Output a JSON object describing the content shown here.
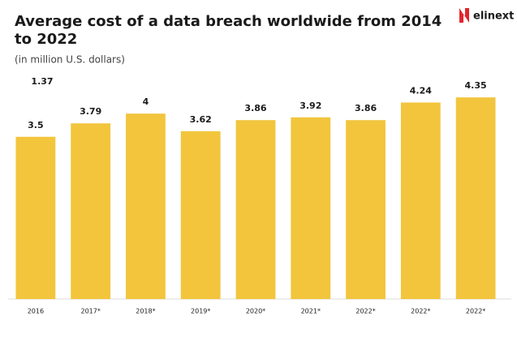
{
  "chart_data": {
    "type": "bar",
    "title": [
      "Average cost of a data breach worldwide from 2014",
      "to 2022"
    ],
    "subtitle": "(in million U.S. dollars)",
    "logo": "elinext",
    "annotation": "1.37",
    "categories": [
      "2016",
      "2017*",
      "2018*",
      "2019*",
      "2020*",
      "2021*",
      "2022*",
      "2022*",
      "2022*"
    ],
    "values": [
      3.5,
      3.79,
      4,
      3.62,
      3.86,
      3.92,
      3.86,
      4.24,
      4.35
    ],
    "color": "#f2c53d",
    "ylim": [
      0,
      5
    ]
  }
}
